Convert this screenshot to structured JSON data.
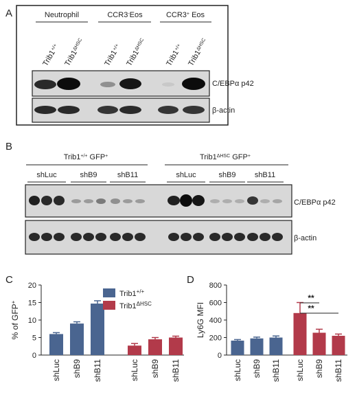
{
  "panels": [
    "A",
    "B",
    "C",
    "D"
  ],
  "blot_a": {
    "groups": [
      {
        "name": "Neutrophil"
      },
      {
        "name": "CCR3",
        "sup": "-",
        "suffix": "Eos"
      },
      {
        "name": "CCR3",
        "sup": "+",
        "suffix": " Eos"
      }
    ],
    "lanes": [
      {
        "name": "Trib1",
        "sup": "+/+"
      },
      {
        "name": "Trib1",
        "sup": "ΔHSC"
      }
    ],
    "rows": [
      "C/EBPα p42",
      "β-actin"
    ]
  },
  "blot_b": {
    "groups": [
      {
        "name": "Trib1",
        "sup": "+/+",
        "suffix": " GFP",
        "suffix_sup": "+"
      },
      {
        "name": "Trib1",
        "sup": "ΔHSC",
        "suffix": " GFP",
        "suffix_sup": "+"
      }
    ],
    "subgroups": [
      "shLuc",
      "shB9",
      "shB11"
    ],
    "rows": [
      "C/EBPα p42",
      "β-actin"
    ]
  },
  "chart_data": [
    {
      "type": "bar",
      "ylabel": "% of GFP",
      "ylabel_sup": "+",
      "categories": [
        "shLuc",
        "shB9",
        "shB11"
      ],
      "series": [
        {
          "name": "Trib1",
          "name_sup": "+/+",
          "color": "#4a6590",
          "values": [
            6.0,
            9.0,
            14.7
          ],
          "errors": [
            0.4,
            0.5,
            0.8
          ]
        },
        {
          "name": "Trib1",
          "name_sup": "ΔHSC",
          "color": "#b23a4a",
          "values": [
            2.7,
            4.5,
            5.0
          ],
          "errors": [
            0.6,
            0.5,
            0.4
          ]
        }
      ],
      "ylim": [
        0,
        20
      ],
      "yticks": [
        0,
        5,
        10,
        15,
        20
      ]
    },
    {
      "type": "bar",
      "ylabel": "Ly6G MFI",
      "categories": [
        "shLuc",
        "shB9",
        "shB11"
      ],
      "series": [
        {
          "color": "#4a6590",
          "values": [
            165,
            190,
            200
          ],
          "errors": [
            12,
            15,
            18
          ]
        },
        {
          "color": "#b23a4a",
          "values": [
            480,
            255,
            220
          ],
          "errors": [
            120,
            40,
            20
          ]
        }
      ],
      "ylim": [
        0,
        800
      ],
      "yticks": [
        0,
        200,
        400,
        600,
        800
      ],
      "annotations": [
        "**",
        "**"
      ]
    }
  ]
}
